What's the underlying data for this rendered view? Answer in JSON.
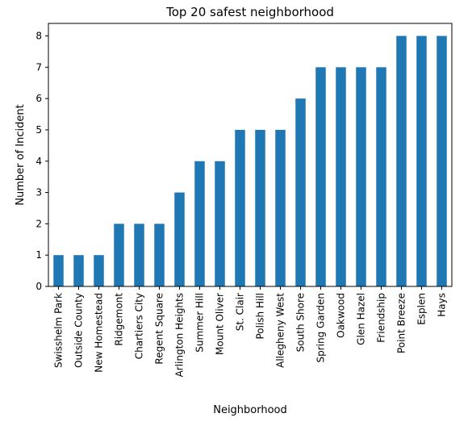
{
  "chart_data": {
    "type": "bar",
    "title": "Top 20 safest neighborhood",
    "xlabel": "Neighborhood",
    "ylabel": "Number of Incident",
    "ylim": [
      0,
      8.4
    ],
    "yticks": [
      0,
      1,
      2,
      3,
      4,
      5,
      6,
      7,
      8
    ],
    "grid": false,
    "bar_color": "#1f77b4",
    "categories": [
      "Swisshelm Park",
      "Outside County",
      "New Homestead",
      "Ridgemont",
      "Chartiers City",
      "Regent Square",
      "Arlington Heights",
      "Summer Hill",
      "Mount Oliver",
      "St. Clair",
      "Polish Hill",
      "Allegheny West",
      "South Shore",
      "Spring Garden",
      "Oakwood",
      "Glen Hazel",
      "Friendship",
      "Point Breeze",
      "Esplen",
      "Hays"
    ],
    "values": [
      1,
      1,
      1,
      2,
      2,
      2,
      3,
      4,
      4,
      5,
      5,
      5,
      6,
      7,
      7,
      7,
      7,
      8,
      8,
      8
    ]
  }
}
